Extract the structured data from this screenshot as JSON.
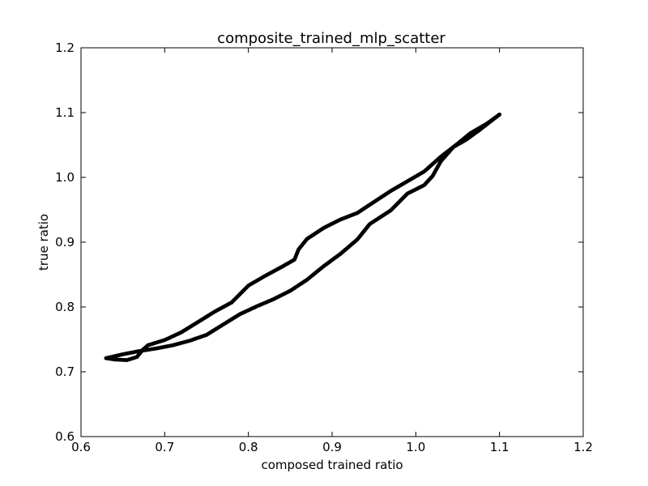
{
  "chart_data": {
    "type": "scatter",
    "title": "composite_trained_mlp_scatter",
    "xlabel": "composed trained ratio",
    "ylabel": "true ratio",
    "xlim": [
      0.6,
      1.2
    ],
    "ylim": [
      0.6,
      1.2
    ],
    "xticks": [
      "0.6",
      "0.7",
      "0.8",
      "0.9",
      "1.0",
      "1.1",
      "1.2"
    ],
    "yticks": [
      "0.6",
      "0.7",
      "0.8",
      "0.9",
      "1.0",
      "1.1",
      "1.2"
    ],
    "grid": false,
    "marker_color": "#000000",
    "series": [
      {
        "points": [
          [
            0.63,
            0.721
          ],
          [
            0.65,
            0.727
          ],
          [
            0.67,
            0.732
          ],
          [
            0.69,
            0.736
          ],
          [
            0.71,
            0.741
          ],
          [
            0.73,
            0.748
          ],
          [
            0.75,
            0.757
          ],
          [
            0.77,
            0.773
          ],
          [
            0.79,
            0.789
          ],
          [
            0.81,
            0.801
          ],
          [
            0.83,
            0.812
          ],
          [
            0.85,
            0.825
          ],
          [
            0.87,
            0.842
          ],
          [
            0.89,
            0.863
          ],
          [
            0.91,
            0.882
          ],
          [
            0.93,
            0.904
          ],
          [
            0.945,
            0.928
          ],
          [
            0.97,
            0.949
          ],
          [
            0.99,
            0.975
          ],
          [
            1.01,
            0.988
          ],
          [
            1.02,
            1.002
          ],
          [
            1.03,
            1.025
          ],
          [
            1.045,
            1.047
          ],
          [
            1.06,
            1.058
          ],
          [
            1.075,
            1.072
          ],
          [
            1.09,
            1.087
          ],
          [
            1.1,
            1.097
          ]
        ]
      },
      {
        "points": [
          [
            1.1,
            1.097
          ],
          [
            1.085,
            1.083
          ],
          [
            1.065,
            1.068
          ],
          [
            1.05,
            1.052
          ],
          [
            1.03,
            1.032
          ],
          [
            1.01,
            1.009
          ],
          [
            0.99,
            0.994
          ],
          [
            0.97,
            0.979
          ],
          [
            0.95,
            0.962
          ],
          [
            0.93,
            0.945
          ],
          [
            0.91,
            0.935
          ],
          [
            0.89,
            0.922
          ],
          [
            0.87,
            0.905
          ],
          [
            0.86,
            0.889
          ],
          [
            0.855,
            0.873
          ],
          [
            0.84,
            0.862
          ],
          [
            0.82,
            0.848
          ],
          [
            0.8,
            0.833
          ],
          [
            0.78,
            0.807
          ],
          [
            0.76,
            0.793
          ],
          [
            0.74,
            0.777
          ],
          [
            0.72,
            0.761
          ],
          [
            0.7,
            0.749
          ],
          [
            0.68,
            0.741
          ],
          [
            0.673,
            0.733
          ],
          [
            0.667,
            0.723
          ],
          [
            0.655,
            0.718
          ],
          [
            0.64,
            0.719
          ],
          [
            0.63,
            0.721
          ]
        ]
      }
    ]
  }
}
